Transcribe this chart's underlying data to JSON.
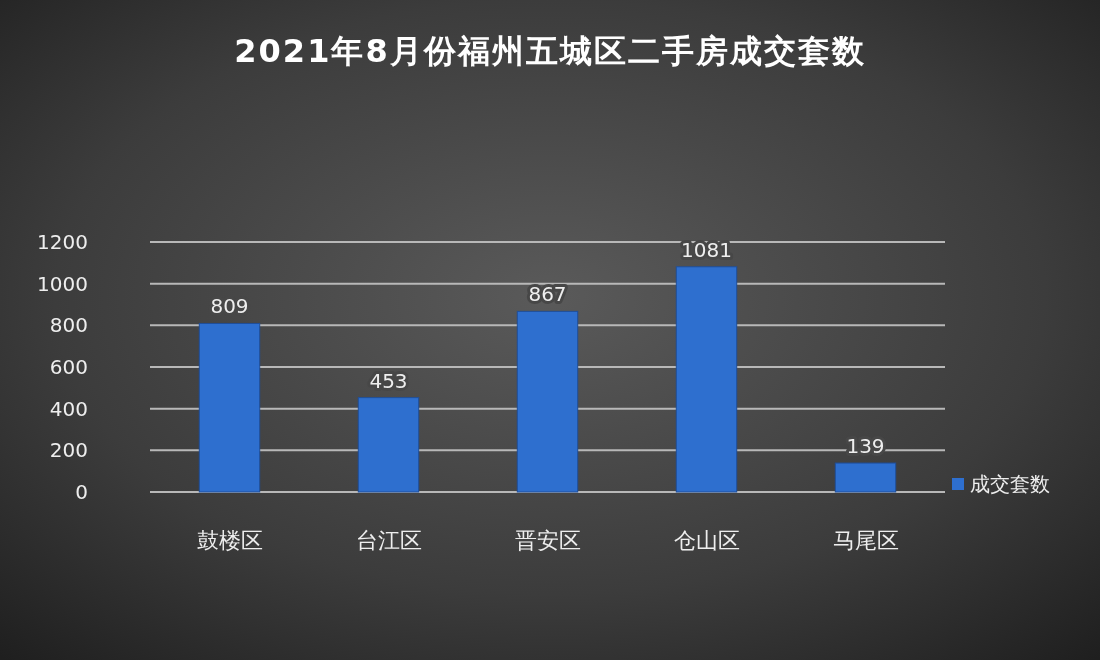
{
  "chart_data": {
    "type": "bar",
    "title": "2021年8月份福州五城区二手房成交套数",
    "categories": [
      "鼓楼区",
      "台江区",
      "晋安区",
      "仓山区",
      "马尾区"
    ],
    "series": [
      {
        "name": "成交套数",
        "color": "#2e6fcf",
        "values": [
          809,
          453,
          867,
          1081,
          139
        ]
      }
    ],
    "ylim": [
      0,
      1200
    ],
    "yticks": [
      0,
      200,
      400,
      600,
      800,
      1000,
      1200
    ],
    "grid": "y",
    "legend": "right",
    "data_labels": true
  }
}
